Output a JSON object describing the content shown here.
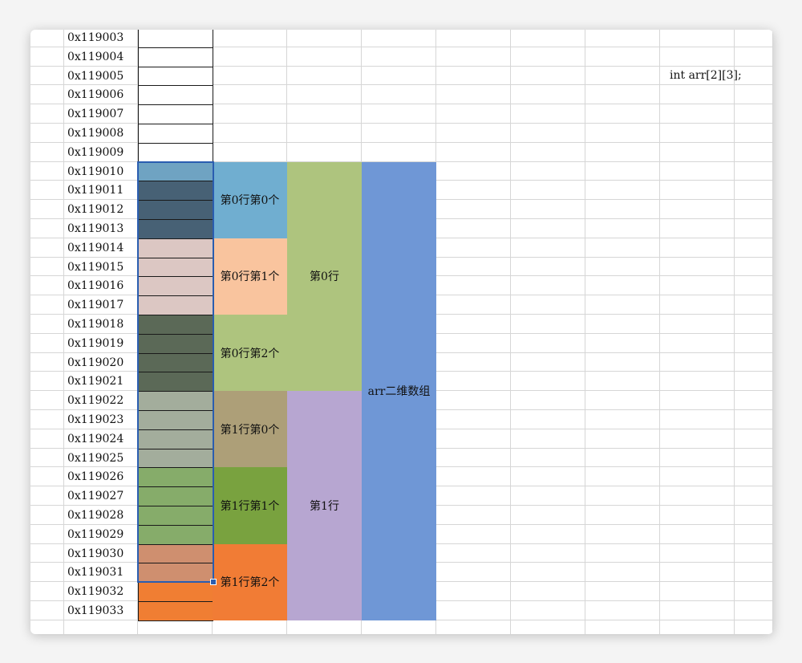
{
  "addresses": [
    "0x119003",
    "0x119004",
    "0x119005",
    "0x119006",
    "0x119007",
    "0x119008",
    "0x119009",
    "0x119010",
    "0x119011",
    "0x119012",
    "0x119013",
    "0x119014",
    "0x119015",
    "0x119016",
    "0x119017",
    "0x119018",
    "0x119019",
    "0x119020",
    "0x119021",
    "0x119022",
    "0x119023",
    "0x119024",
    "0x119025",
    "0x119026",
    "0x119027",
    "0x119028",
    "0x119029",
    "0x119030",
    "0x119031",
    "0x119032",
    "0x119033"
  ],
  "memory_colors": [
    "#ffffff",
    "#ffffff",
    "#ffffff",
    "#ffffff",
    "#ffffff",
    "#ffffff",
    "#ffffff",
    "#6fa3c2",
    "#476175",
    "#476175",
    "#476175",
    "#dcc7c3",
    "#dcc7c3",
    "#dcc7c3",
    "#dcc7c3",
    "#5b6957",
    "#5b6957",
    "#5b6957",
    "#5b6957",
    "#a3ad9c",
    "#a3ad9c",
    "#a3ad9c",
    "#a3ad9c",
    "#86ac6a",
    "#86ac6a",
    "#86ac6a",
    "#86ac6a",
    "#cf8f6f",
    "#cf8f6f",
    "#f07e33",
    "#f07e33"
  ],
  "elements": [
    {
      "label": "第0行第0个",
      "start_row": 7,
      "rows": 4,
      "color": "#70aed0"
    },
    {
      "label": "第0行第1个",
      "start_row": 11,
      "rows": 4,
      "color": "#f9c49e"
    },
    {
      "label": "第0行第2个",
      "start_row": 15,
      "rows": 4,
      "color": "#aec47e"
    },
    {
      "label": "第1行第0个",
      "start_row": 19,
      "rows": 4,
      "color": "#ad9f78"
    },
    {
      "label": "第1行第1个",
      "start_row": 23,
      "rows": 4,
      "color": "#79a23f"
    },
    {
      "label": "第1行第2个",
      "start_row": 27,
      "rows": 4,
      "color": "#f17c35"
    }
  ],
  "rows": [
    {
      "label": "第0行",
      "start_row": 7,
      "rows": 12,
      "color": "#aec47e"
    },
    {
      "label": "第1行",
      "start_row": 19,
      "rows": 12,
      "color": "#b7a6d1"
    }
  ],
  "array_block": {
    "label": "arr二维数组",
    "start_row": 7,
    "rows": 24,
    "color": "#6f97d6"
  },
  "code_text": "int arr[2][3];",
  "selection": {
    "start_row": 7,
    "rows": 22
  }
}
